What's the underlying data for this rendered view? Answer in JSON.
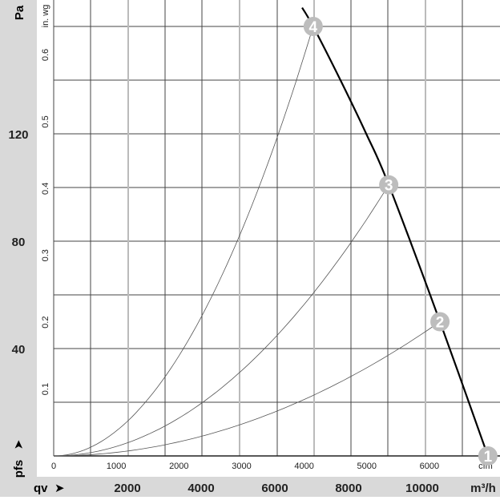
{
  "chart_data": {
    "type": "line",
    "primary_y_axis": {
      "unit": "Pa",
      "ticks": [
        40,
        80,
        120
      ],
      "range": [
        0,
        160
      ]
    },
    "secondary_y_axis": {
      "unit": "in. wg",
      "ticks": [
        "0.1",
        "0.2",
        "0.3",
        "0.4",
        "0.5",
        "0.6"
      ]
    },
    "y_symbol": "pfs",
    "primary_x_axis": {
      "unit": "m³/h",
      "ticks": [
        2000,
        4000,
        6000,
        8000,
        10000
      ],
      "range": [
        0,
        12130
      ]
    },
    "secondary_x_axis": {
      "unit": "cfm",
      "ticks": [
        "0",
        "1000",
        "2000",
        "3000",
        "4000",
        "5000",
        "6000"
      ]
    },
    "x_symbol": "qv",
    "grid": true,
    "fan_curve": {
      "x": [
        6740,
        7040,
        7780,
        8480,
        9090,
        10480,
        11780
      ],
      "y": [
        167,
        160,
        140,
        120,
        101,
        50,
        0
      ]
    },
    "operating_points": [
      {
        "label": "1",
        "x": 11780,
        "y": 0
      },
      {
        "label": "2",
        "x": 10480,
        "y": 50
      },
      {
        "label": "3",
        "x": 9090,
        "y": 101
      },
      {
        "label": "4",
        "x": 7040,
        "y": 160
      }
    ],
    "marker_color": "#bdbdbd",
    "fan_curve_color": "#000000",
    "system_curve_color": "#555555"
  }
}
